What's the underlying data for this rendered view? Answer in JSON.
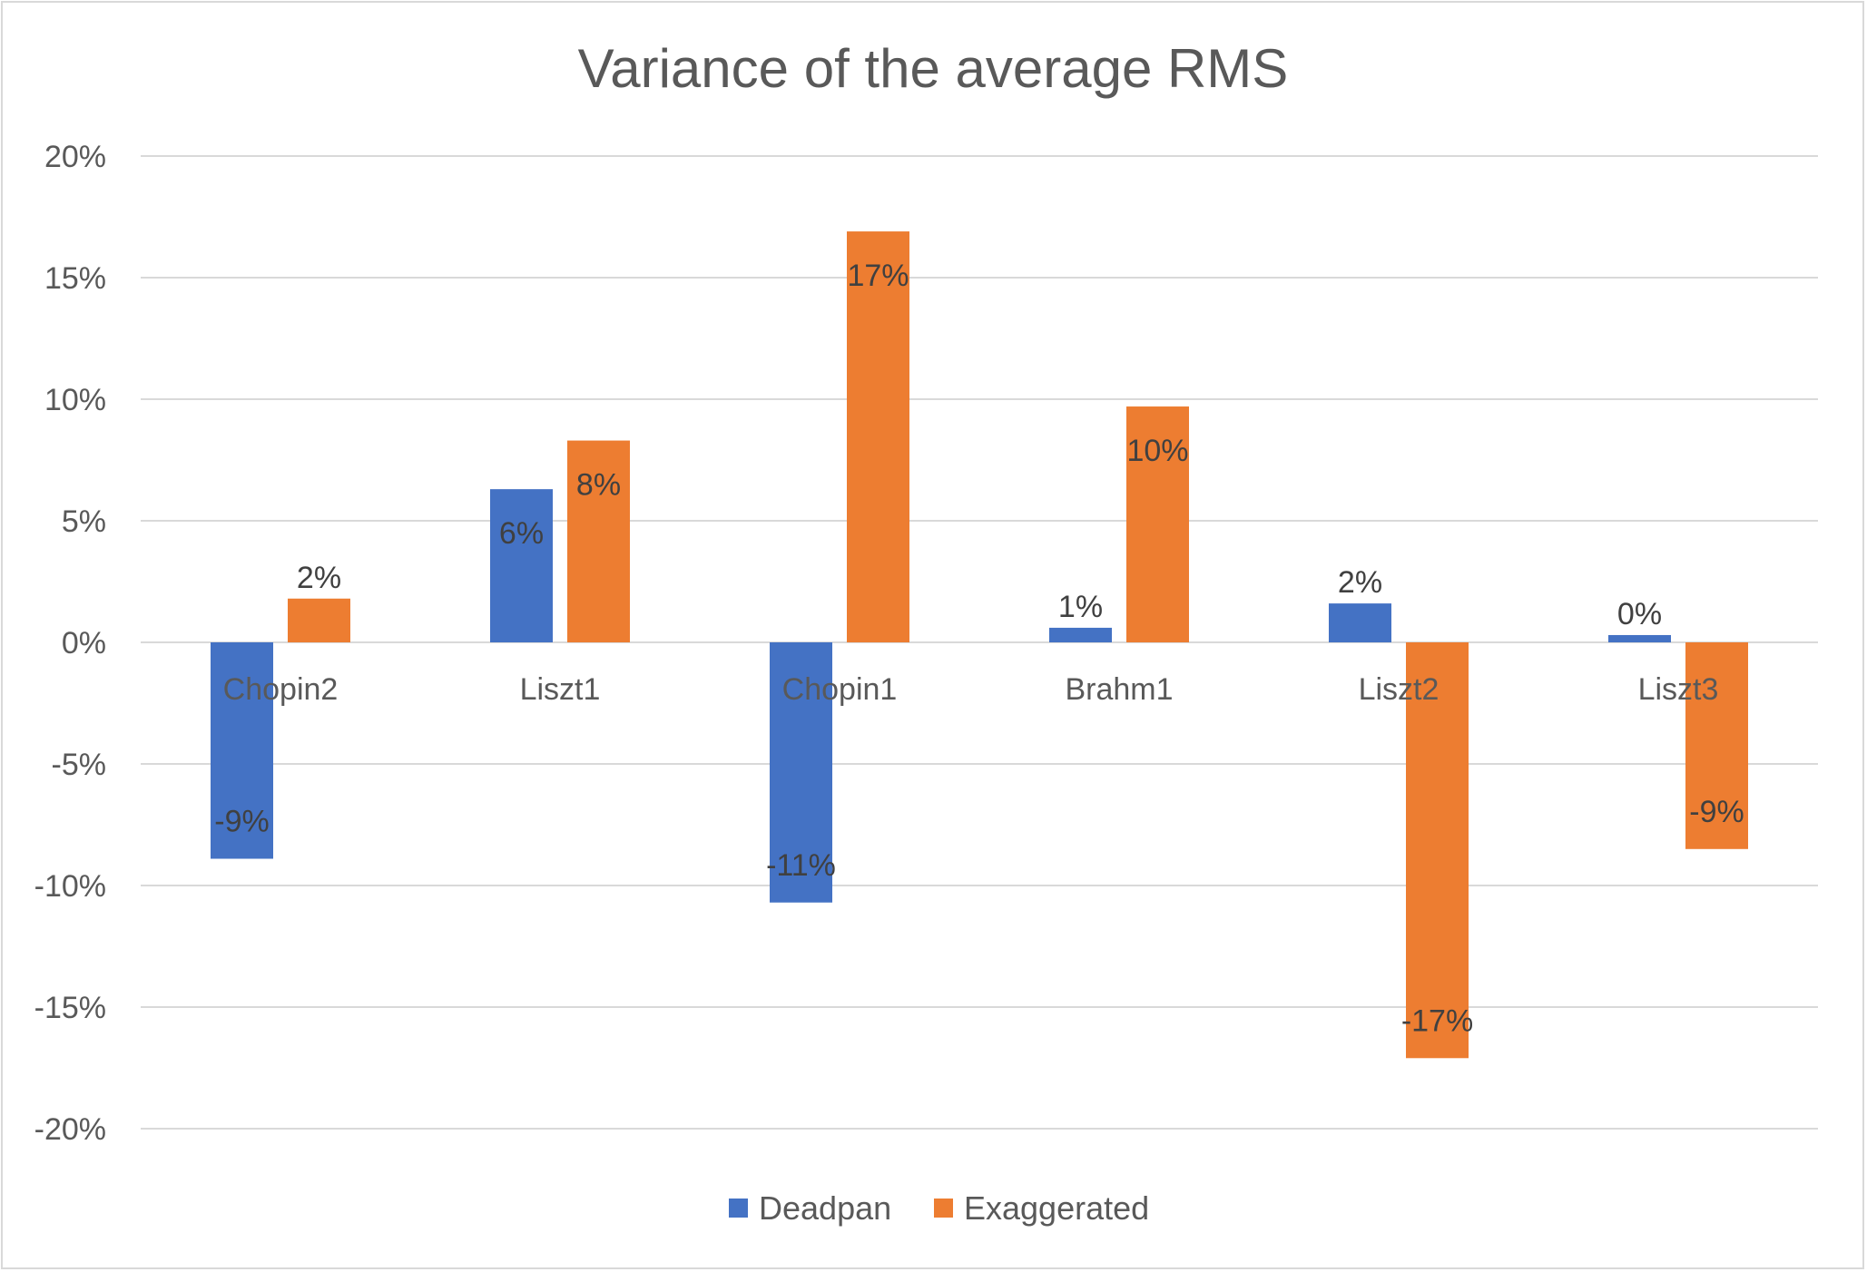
{
  "chart_data": {
    "type": "bar",
    "title": "Variance of the average RMS",
    "categories": [
      "Chopin2",
      "Liszt1",
      "Chopin1",
      "Brahm1",
      "Liszt2",
      "Liszt3"
    ],
    "series": [
      {
        "name": "Deadpan",
        "color": "#4472c4",
        "values": [
          -8.9,
          6.3,
          -10.7,
          0.6,
          1.6,
          0.3
        ],
        "labels": [
          "-9%",
          "6%",
          "-11%",
          "1%",
          "2%",
          "0%"
        ]
      },
      {
        "name": "Exaggerated",
        "color": "#ed7d31",
        "values": [
          1.8,
          8.3,
          16.9,
          9.7,
          -17.1,
          -8.5
        ],
        "labels": [
          "2%",
          "8%",
          "17%",
          "10%",
          "-17%",
          "-9%"
        ]
      }
    ],
    "ylim": [
      -20,
      20
    ],
    "ytick_values": [
      20,
      15,
      10,
      5,
      0,
      -5,
      -10,
      -15,
      -20
    ],
    "ytick_labels": [
      "20%",
      "15%",
      "10%",
      "5%",
      "0%",
      "-5%",
      "-10%",
      "-15%",
      "-20%"
    ],
    "grid": true,
    "legend": "bottom",
    "gridline_color": "#d9d9d9"
  }
}
